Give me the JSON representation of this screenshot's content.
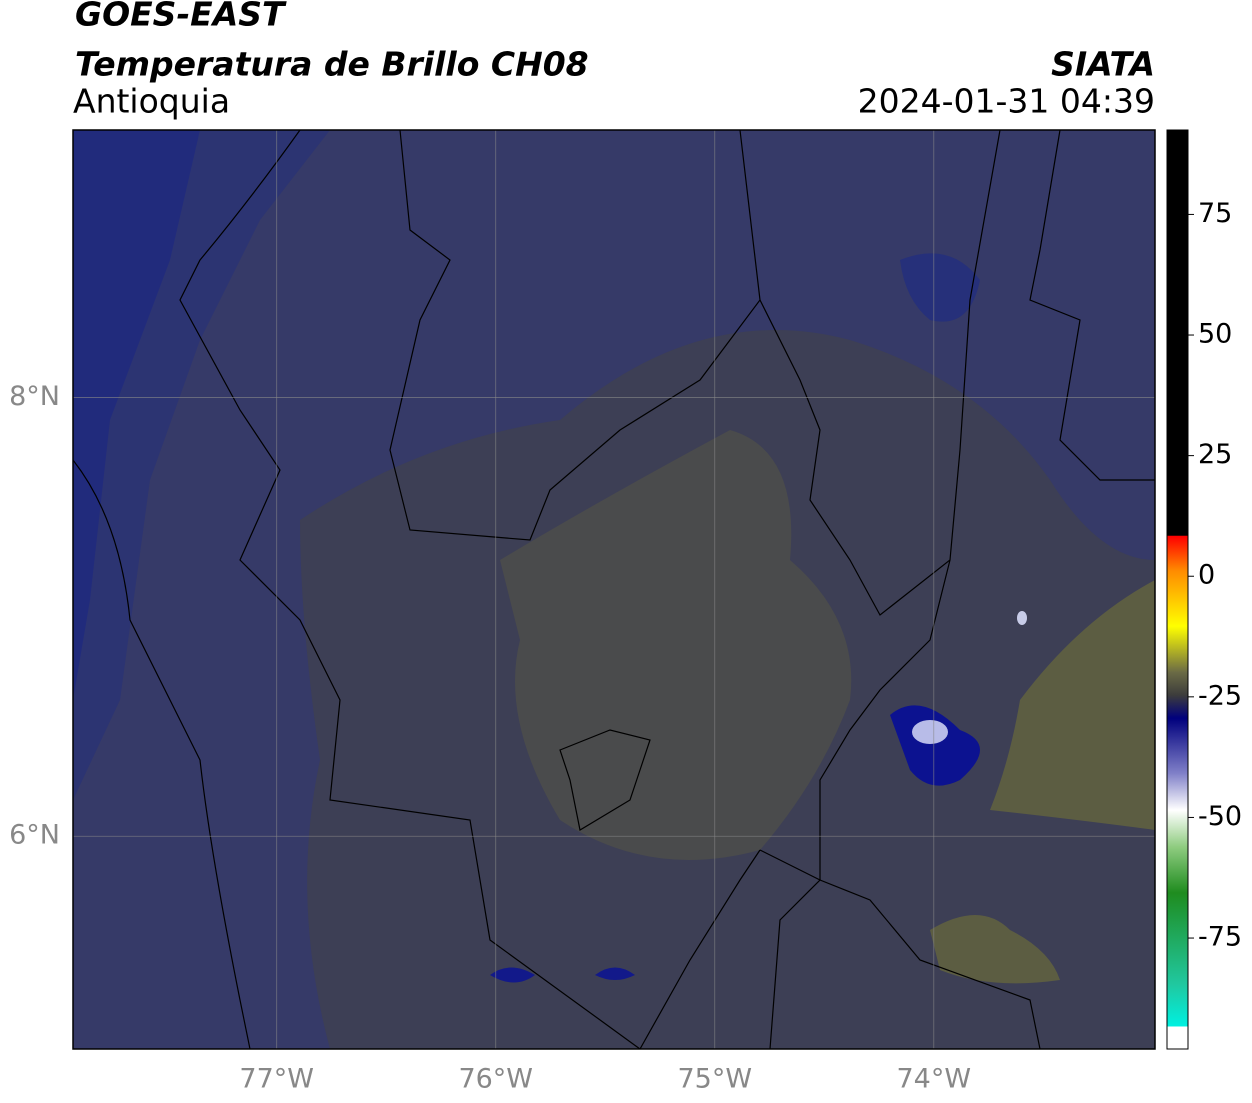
{
  "header": {
    "title": "GOES-EAST",
    "subtitle": "Temperatura de Brillo CH08",
    "region": "Antioquia",
    "source": "SIATA",
    "datetime": "2024-01-31 04:39"
  },
  "map": {
    "xlim": [
      -77.93,
      -72.99
    ],
    "ylim": [
      5.03,
      9.22
    ],
    "xticks": [
      {
        "value": -77,
        "label": "77°W"
      },
      {
        "value": -76,
        "label": "76°W"
      },
      {
        "value": -75,
        "label": "75°W"
      },
      {
        "value": -74,
        "label": "74°W"
      }
    ],
    "yticks": [
      {
        "value": 8,
        "label": "8°N"
      },
      {
        "value": 6,
        "label": "6°N"
      }
    ],
    "grid": true
  },
  "colorbar": {
    "lim": [
      -98,
      92.5
    ],
    "ticks": [
      75,
      50,
      25,
      0,
      -25,
      -50,
      -75
    ]
  }
}
